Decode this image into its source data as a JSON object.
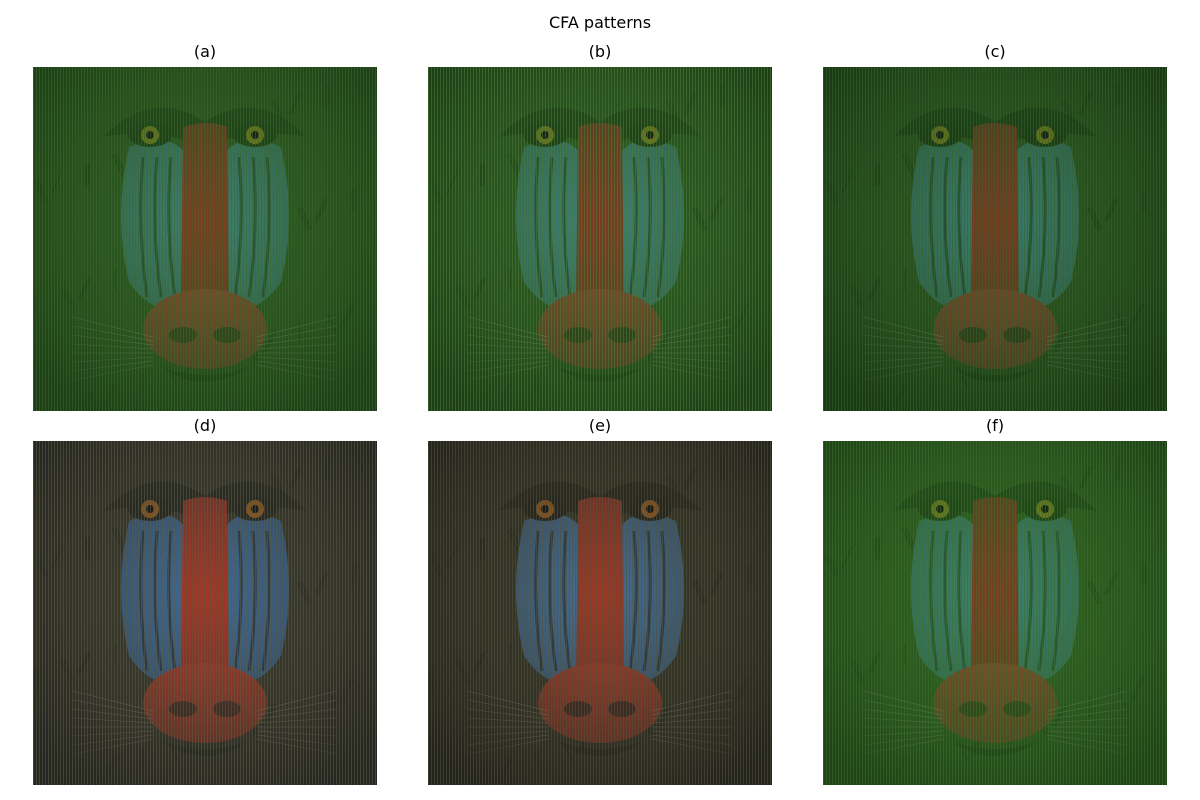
{
  "title": "CFA patterns",
  "panels": [
    {
      "caption": "(a)",
      "tint": {
        "bg": "#2e5a22",
        "bg_dark": "#1c3c16",
        "patch": "#3f7e74",
        "nose": "#7b3d22",
        "snout": "#8e4a30",
        "eye": "#8a8a20",
        "stripe": "#3a6a2a"
      }
    },
    {
      "caption": "(b)",
      "tint": {
        "bg": "#2d5b22",
        "bg_dark": "#1b3b15",
        "patch": "#3e7f76",
        "nose": "#7a3c22",
        "snout": "#8b482e",
        "eye": "#8a8a22",
        "stripe": "#4a7a36"
      }
    },
    {
      "caption": "(c)",
      "tint": {
        "bg": "#2b5420",
        "bg_dark": "#183614",
        "patch": "#3b7a70",
        "nose": "#753a22",
        "snout": "#88462e",
        "eye": "#868620",
        "stripe": "#356428"
      }
    },
    {
      "caption": "(d)",
      "tint": {
        "bg": "#3a3a2e",
        "bg_dark": "#242420",
        "patch": "#3e6a98",
        "nose": "#a33626",
        "snout": "#b23c2a",
        "eye": "#b06a20",
        "stripe": "#5a5a44"
      }
    },
    {
      "caption": "(e)",
      "tint": {
        "bg": "#383829",
        "bg_dark": "#22221c",
        "patch": "#456e94",
        "nose": "#9e3826",
        "snout": "#ad3e2a",
        "eye": "#b06822",
        "stripe": "#52523e"
      }
    },
    {
      "caption": "(f)",
      "tint": {
        "bg": "#2f6022",
        "bg_dark": "#1d4016",
        "patch": "#3e8072",
        "nose": "#7a3d22",
        "snout": "#8d4a2e",
        "eye": "#8c8c22",
        "stripe": "#3c6e2a"
      }
    }
  ]
}
